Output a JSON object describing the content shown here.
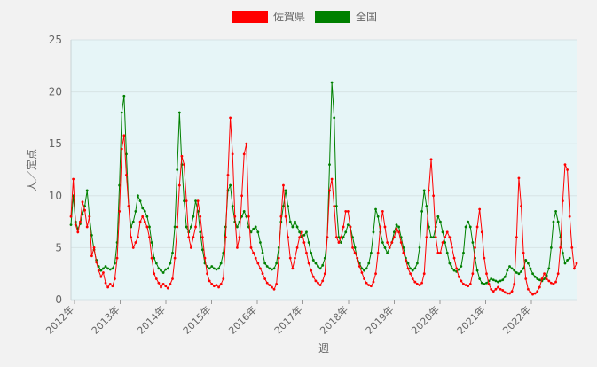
{
  "chart_data": {
    "type": "line",
    "xlabel": "週",
    "ylabel": "人／定点",
    "ylim": [
      0,
      25
    ],
    "y_ticks": [
      0,
      5,
      10,
      15,
      20,
      25
    ],
    "x_ticks": [
      "2012年",
      "2013年",
      "2014年",
      "2015年",
      "2016年",
      "2017年",
      "2018年",
      "2019年",
      "2020年",
      "2021年",
      "2022年"
    ],
    "grid": true,
    "legend_position": "top-center",
    "plot_background": "#e6f5f7",
    "series": [
      {
        "name": "佐賀県",
        "color": "#ff0000",
        "values": [
          8.0,
          11.6,
          7.2,
          6.5,
          7.5,
          9.4,
          8.6,
          7.0,
          8.0,
          4.2,
          5.0,
          3.6,
          2.8,
          2.2,
          2.6,
          1.6,
          1.2,
          1.5,
          1.3,
          2.0,
          4.0,
          8.5,
          14.5,
          15.8,
          12.0,
          9.0,
          6.0,
          5.0,
          5.5,
          6.0,
          7.5,
          8.0,
          7.5,
          7.0,
          6.0,
          4.0,
          2.5,
          2.0,
          1.6,
          1.2,
          1.5,
          1.3,
          1.1,
          1.5,
          2.0,
          4.0,
          7.0,
          11.0,
          13.8,
          13.0,
          9.5,
          6.0,
          5.0,
          6.0,
          7.0,
          9.5,
          8.0,
          6.0,
          4.0,
          2.5,
          1.8,
          1.5,
          1.3,
          1.4,
          1.2,
          1.5,
          2.0,
          6.0,
          12.0,
          17.5,
          14.0,
          8.0,
          5.0,
          6.0,
          10.0,
          14.0,
          15.0,
          8.0,
          5.0,
          4.5,
          4.0,
          3.5,
          3.0,
          2.5,
          2.0,
          1.6,
          1.4,
          1.2,
          1.0,
          1.5,
          4.0,
          8.0,
          11.0,
          8.0,
          6.0,
          4.0,
          3.0,
          4.0,
          5.0,
          6.0,
          6.5,
          5.5,
          4.5,
          3.5,
          2.8,
          2.2,
          1.8,
          1.6,
          1.4,
          1.8,
          2.5,
          6.0,
          10.5,
          11.6,
          9.0,
          6.0,
          5.5,
          6.0,
          7.0,
          8.5,
          8.5,
          7.0,
          5.0,
          4.5,
          4.0,
          3.2,
          2.6,
          2.0,
          1.6,
          1.4,
          1.3,
          1.7,
          2.5,
          4.5,
          7.0,
          8.5,
          7.0,
          5.5,
          5.0,
          5.5,
          6.0,
          6.8,
          6.5,
          5.5,
          4.5,
          3.8,
          3.0,
          2.5,
          2.0,
          1.7,
          1.5,
          1.4,
          1.6,
          2.5,
          6.0,
          10.5,
          13.5,
          10.0,
          6.0,
          4.5,
          4.5,
          5.5,
          6.0,
          6.5,
          6.0,
          5.0,
          4.0,
          3.0,
          2.2,
          1.8,
          1.5,
          1.4,
          1.3,
          1.5,
          2.5,
          5.0,
          7.0,
          8.7,
          6.5,
          4.0,
          2.5,
          1.5,
          1.0,
          0.8,
          1.0,
          1.2,
          1.0,
          0.9,
          0.7,
          0.6,
          0.6,
          0.8,
          1.5,
          6.0,
          11.7,
          9.0,
          4.5,
          2.0,
          1.0,
          0.7,
          0.5,
          0.6,
          0.8,
          1.2,
          2.0,
          2.5,
          2.0,
          1.8,
          1.6,
          1.5,
          1.7,
          2.5,
          5.0,
          9.5,
          13.0,
          12.5,
          8.0,
          5.0,
          3.0,
          3.5
        ]
      },
      {
        "name": "全国",
        "color": "#008000",
        "values": [
          7.2,
          10.0,
          7.5,
          6.8,
          7.3,
          8.2,
          9.0,
          10.5,
          8.0,
          6.2,
          4.8,
          3.8,
          3.2,
          2.8,
          3.0,
          3.2,
          3.0,
          2.9,
          3.0,
          3.5,
          5.5,
          11.0,
          18.0,
          19.6,
          14.0,
          9.0,
          7.0,
          7.5,
          8.5,
          10.0,
          9.5,
          8.8,
          8.5,
          8.0,
          7.0,
          5.5,
          4.0,
          3.5,
          3.0,
          2.8,
          2.6,
          2.9,
          3.0,
          3.5,
          4.5,
          7.0,
          12.5,
          18.0,
          13.0,
          9.5,
          7.0,
          6.5,
          7.0,
          8.0,
          9.5,
          8.5,
          6.5,
          4.8,
          3.5,
          3.2,
          3.0,
          3.2,
          3.0,
          2.9,
          3.0,
          3.5,
          4.5,
          7.0,
          10.5,
          11.0,
          9.0,
          7.5,
          7.0,
          7.5,
          8.0,
          8.5,
          8.0,
          7.0,
          6.5,
          6.8,
          7.0,
          6.5,
          5.5,
          4.5,
          3.5,
          3.2,
          3.0,
          2.9,
          3.0,
          3.5,
          5.0,
          7.5,
          9.0,
          10.5,
          9.0,
          7.5,
          7.0,
          7.5,
          7.0,
          6.5,
          6.0,
          6.2,
          6.5,
          5.5,
          4.5,
          3.8,
          3.5,
          3.2,
          3.0,
          3.3,
          4.0,
          6.0,
          13.0,
          20.9,
          17.5,
          9.0,
          6.0,
          5.5,
          6.0,
          6.5,
          7.2,
          7.0,
          6.0,
          5.0,
          4.0,
          3.5,
          3.0,
          2.8,
          3.0,
          3.5,
          4.5,
          6.5,
          8.7,
          8.0,
          6.5,
          5.5,
          5.0,
          4.5,
          5.0,
          5.5,
          6.5,
          7.2,
          7.0,
          6.0,
          5.0,
          4.0,
          3.5,
          3.0,
          2.8,
          3.0,
          3.5,
          5.0,
          8.5,
          10.5,
          9.0,
          7.0,
          6.0,
          6.0,
          7.0,
          8.0,
          7.5,
          6.5,
          5.5,
          4.5,
          3.5,
          3.0,
          2.8,
          2.7,
          2.9,
          3.2,
          4.5,
          7.0,
          7.5,
          7.0,
          5.5,
          4.0,
          2.8,
          2.0,
          1.6,
          1.5,
          1.6,
          1.8,
          2.0,
          1.9,
          1.8,
          1.7,
          1.8,
          1.9,
          2.2,
          2.8,
          3.2,
          3.0,
          2.8,
          2.6,
          2.5,
          2.7,
          3.0,
          3.8,
          3.5,
          3.0,
          2.5,
          2.2,
          2.0,
          1.9,
          1.8,
          2.0,
          2.3,
          3.0,
          5.0,
          7.5,
          8.5,
          7.5,
          6.0,
          4.5,
          3.5,
          3.8,
          4.0
        ]
      }
    ]
  }
}
